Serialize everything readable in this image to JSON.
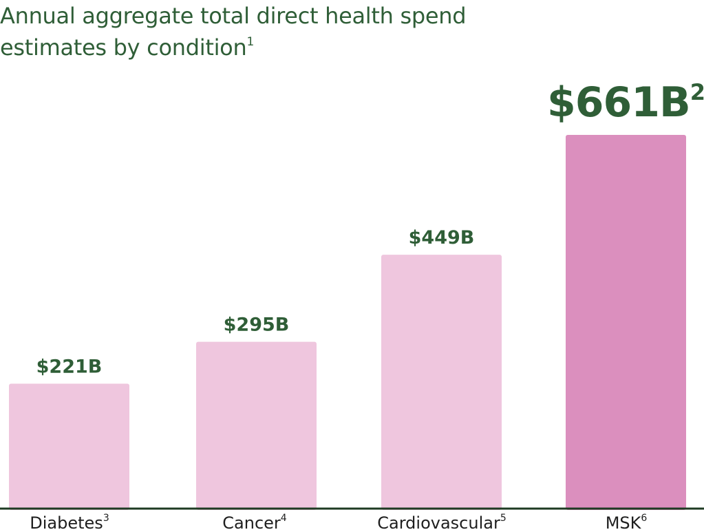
{
  "colors": {
    "title": "#2f5e37",
    "value_label": "#2f5e37",
    "bar_light": "#efc6de",
    "bar_highlight": "#db8fbe",
    "axis": "#1e3a22",
    "category_text": "#1e1e1e"
  },
  "chart_data": {
    "type": "bar",
    "title_line1": "Annual aggregate total direct health spend",
    "title_line2": "estimates by condition",
    "title_footnote": "1",
    "categories": [
      "Diabetes",
      "Cancer",
      "Cardiovascular",
      "MSK"
    ],
    "category_footnotes": [
      "3",
      "4",
      "5",
      "6"
    ],
    "values": [
      221,
      295,
      449,
      661
    ],
    "value_labels": [
      "$221B",
      "$295B",
      "$449B",
      "$661B"
    ],
    "value_label_footnotes": [
      "",
      "",
      "",
      "2"
    ],
    "highlight_index": 3,
    "unit": "B (USD)",
    "xlabel": "",
    "ylabel": "",
    "ylim": [
      0,
      661
    ],
    "grid": false,
    "legend": "none"
  }
}
